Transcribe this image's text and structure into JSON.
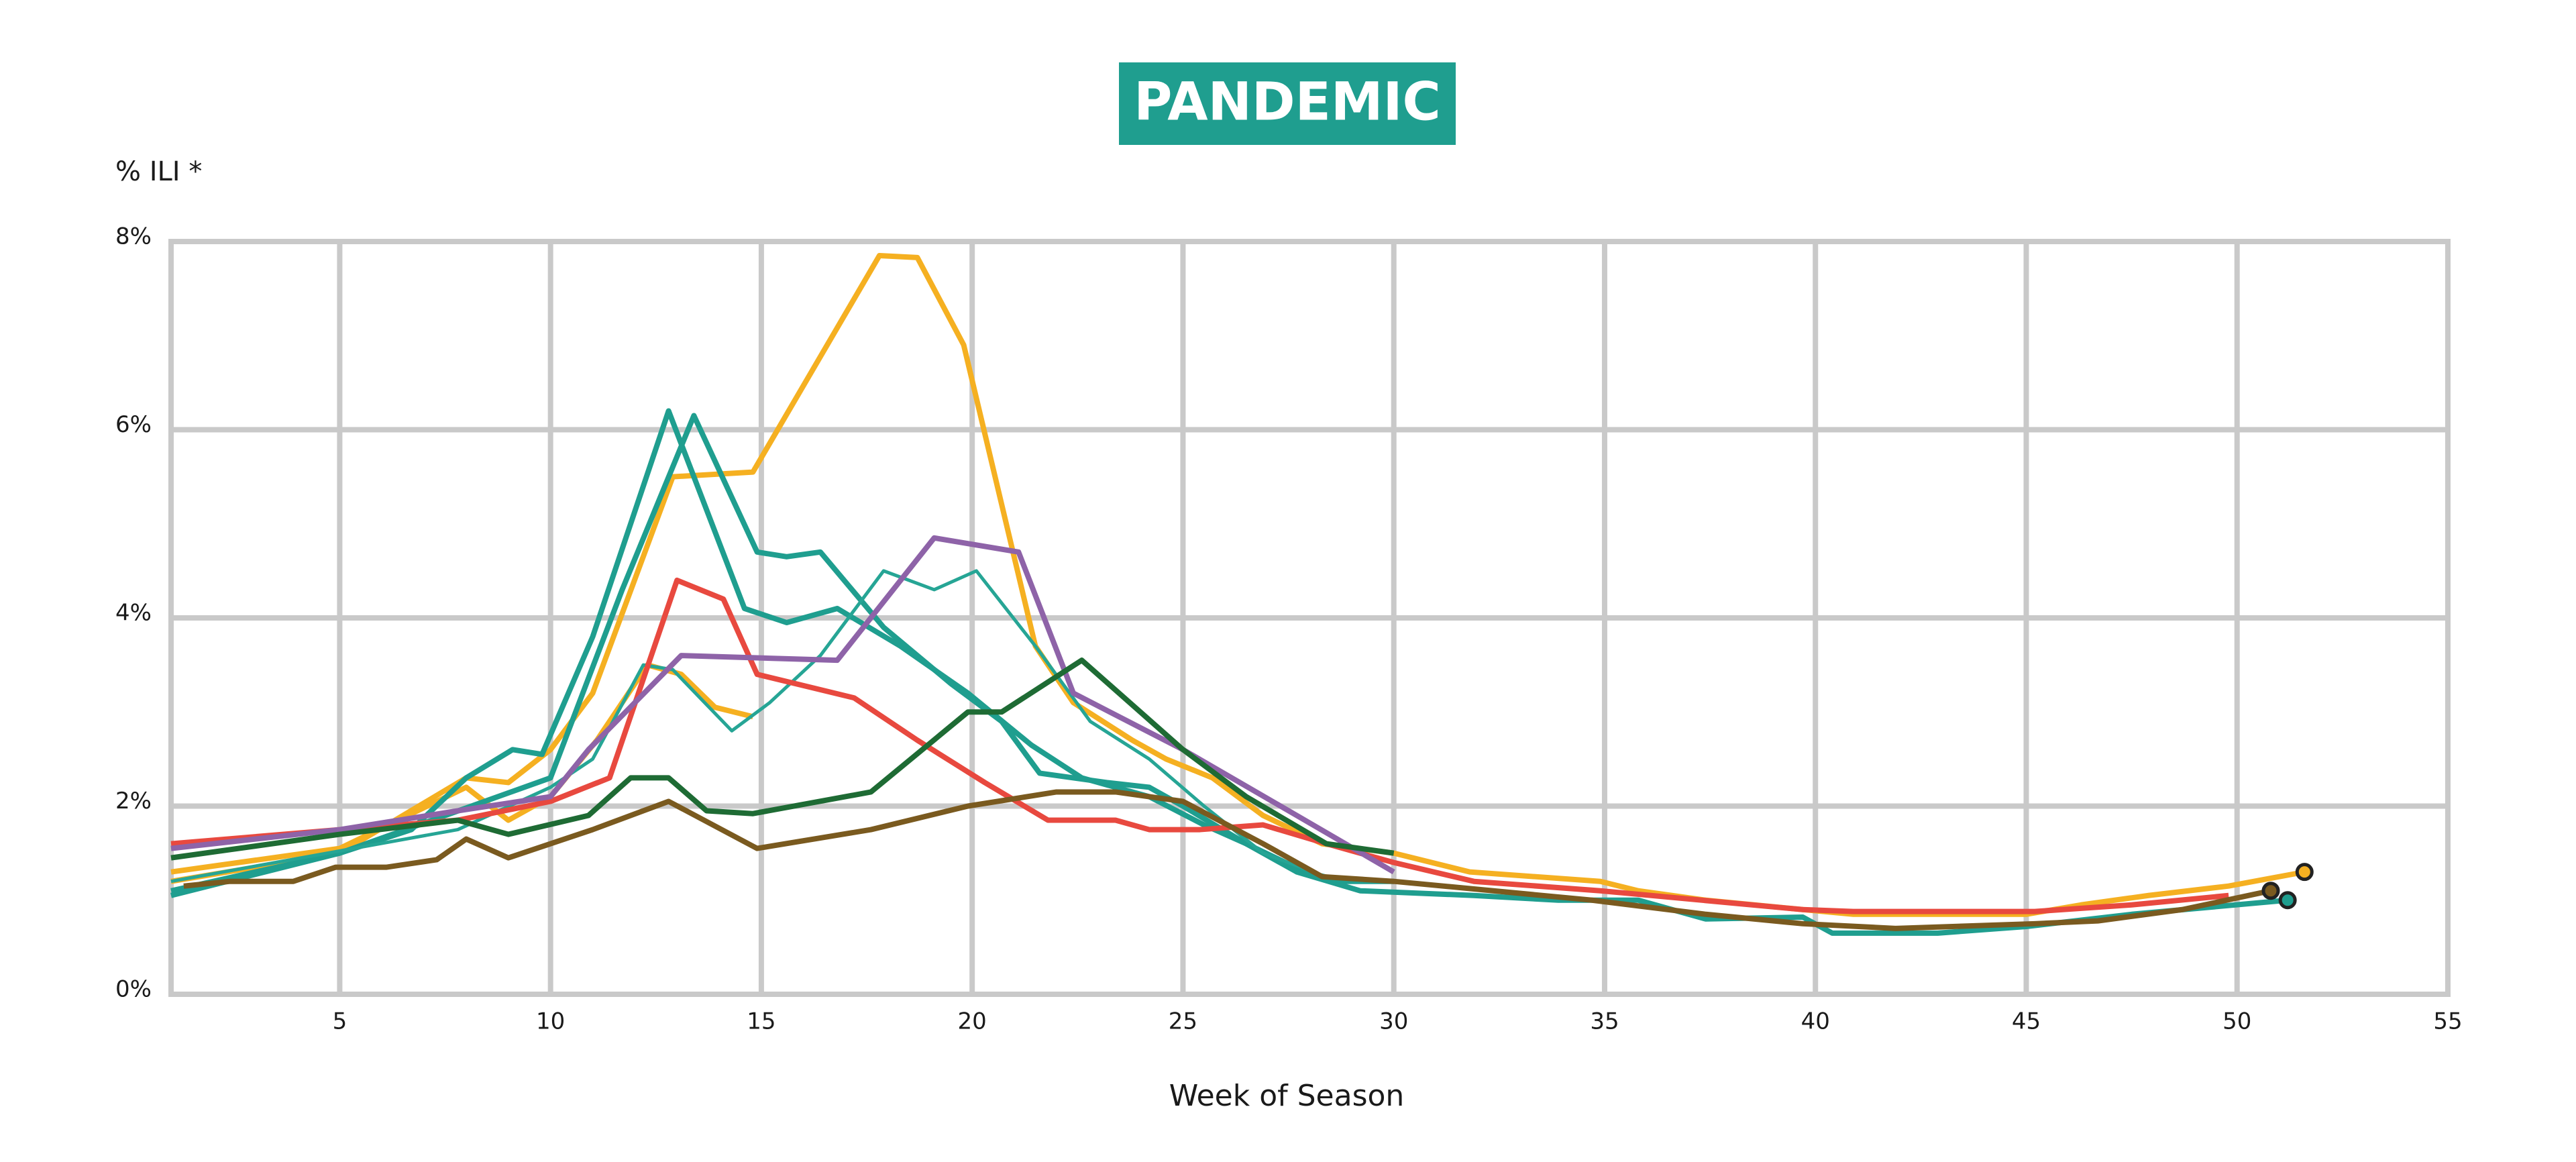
{
  "chart_data": {
    "type": "line",
    "title": "PANDEMIC",
    "y_label": "% ILI *",
    "x_label": "Week of Season",
    "xlim": [
      1,
      55
    ],
    "xticks": [
      5,
      10,
      15,
      20,
      25,
      30,
      35,
      40,
      45,
      50,
      55
    ],
    "ylim": [
      0,
      8
    ],
    "yticks": [
      {
        "value": 0,
        "label": "0%"
      },
      {
        "value": 2,
        "label": "2%"
      },
      {
        "value": 4,
        "label": "4%"
      },
      {
        "value": 6,
        "label": "6%"
      },
      {
        "value": 8,
        "label": "8%"
      }
    ],
    "grid": true,
    "series": [
      {
        "color": "#f5b021",
        "marker_last": true,
        "x": [
          1,
          5,
          8,
          9,
          10,
          11,
          12.9,
          14.8,
          17.8,
          18.7,
          19.8,
          21.5,
          22.4,
          23.8,
          24.6,
          25.7,
          26.9,
          28.3,
          30,
          31.8,
          34.9,
          35.8,
          37.4,
          39.7,
          40.9,
          45,
          46.3,
          47.9,
          49.8,
          51.6
        ],
        "values": [
          1.2,
          1.5,
          2.3,
          2.25,
          2.6,
          3.2,
          5.5,
          5.55,
          7.85,
          7.83,
          6.9,
          3.7,
          3.1,
          2.7,
          2.5,
          2.3,
          1.9,
          1.6,
          1.5,
          1.3,
          1.2,
          1.1,
          1.0,
          0.9,
          0.85,
          0.85,
          0.95,
          1.05,
          1.15,
          1.3
        ]
      },
      {
        "color": "#f5b021",
        "x": [
          1,
          5,
          8,
          9,
          10,
          11.1,
          12.3,
          13.1,
          13.9,
          14.8
        ],
        "values": [
          1.3,
          1.55,
          2.2,
          1.85,
          2.1,
          2.7,
          3.5,
          3.4,
          3.05,
          2.95
        ]
      },
      {
        "color": "#1f9e8f",
        "marker_last": true,
        "x": [
          1,
          5,
          6.7,
          8,
          9.1,
          9.8,
          11,
          12.8,
          14.6,
          15.6,
          16.8,
          18.3,
          19.9,
          21.4,
          22.6,
          24.2,
          25.5,
          26.5,
          27.7,
          29.2,
          31.9,
          33.9,
          35.8,
          37.4,
          39.7,
          40.4,
          42.9,
          45,
          47.5,
          51.2
        ],
        "values": [
          1.1,
          1.5,
          1.75,
          2.3,
          2.6,
          2.55,
          3.8,
          6.2,
          4.1,
          3.95,
          4.1,
          3.7,
          3.2,
          2.65,
          2.3,
          2.1,
          1.8,
          1.6,
          1.3,
          1.1,
          1.05,
          1.0,
          1.0,
          0.8,
          0.82,
          0.65,
          0.65,
          0.72,
          0.85,
          1.0
        ]
      },
      {
        "color": "#1f9e8f",
        "x": [
          1,
          5,
          10,
          11.7,
          13.4,
          14.9,
          15.6,
          16.4,
          17.9,
          19.5,
          20.7,
          21.6,
          23.2,
          24.2,
          25,
          26.5,
          27.9,
          28.8,
          30
        ],
        "values": [
          1.05,
          1.5,
          2.3,
          4.3,
          6.15,
          4.7,
          4.65,
          4.7,
          3.9,
          3.3,
          2.9,
          2.35,
          2.25,
          2.2,
          2.0,
          1.6,
          1.3,
          1.2,
          1.2
        ]
      },
      {
        "color": "#26a595",
        "thin": true,
        "x": [
          1,
          7.8,
          10,
          11,
          12.2,
          12.9,
          14.3,
          15.2,
          16.4,
          17.9,
          19.1,
          20.1,
          21.5,
          22.8,
          24.2,
          25.5,
          26.9,
          28.1
        ],
        "values": [
          1.2,
          1.75,
          2.2,
          2.5,
          3.5,
          3.45,
          2.8,
          3.1,
          3.6,
          4.5,
          4.3,
          4.5,
          3.7,
          2.9,
          2.5,
          2.0,
          1.5,
          1.3
        ]
      },
      {
        "color": "#e8493f",
        "x": [
          1,
          5,
          7.8,
          10,
          11.4,
          13,
          14.1,
          14.9,
          17.2,
          18.7,
          20.3,
          21.8,
          23.4,
          24.2,
          25.4,
          26.9,
          28.4,
          30,
          31.9,
          34.9,
          39.7,
          40.9,
          45.2,
          47.5,
          49.8
        ],
        "values": [
          1.6,
          1.75,
          1.85,
          2.05,
          2.3,
          4.4,
          4.2,
          3.4,
          3.15,
          2.7,
          2.25,
          1.85,
          1.85,
          1.75,
          1.75,
          1.8,
          1.6,
          1.4,
          1.2,
          1.1,
          0.9,
          0.88,
          0.88,
          0.95,
          1.05
        ]
      },
      {
        "color": "#8e63a8",
        "x": [
          1,
          5,
          7.8,
          10,
          10.9,
          13.1,
          16.8,
          19.1,
          21.1,
          22.4,
          25,
          27.7,
          30
        ],
        "values": [
          1.55,
          1.75,
          1.95,
          2.1,
          2.6,
          3.6,
          3.55,
          4.85,
          4.7,
          3.2,
          2.6,
          1.9,
          1.3
        ]
      },
      {
        "color": "#1e6b34",
        "x": [
          1,
          5,
          7.8,
          9,
          10.9,
          11.9,
          12.8,
          13.7,
          14.8,
          17.6,
          19.9,
          20.7,
          22.6,
          25,
          26.5,
          28.4,
          30
        ],
        "values": [
          1.45,
          1.7,
          1.85,
          1.7,
          1.9,
          2.3,
          2.3,
          1.95,
          1.92,
          2.15,
          3.0,
          3.0,
          3.55,
          2.6,
          2.1,
          1.6,
          1.5
        ]
      },
      {
        "color": "#7a5a1f",
        "marker_last": true,
        "x": [
          1.3,
          2.4,
          3.9,
          4.9,
          6.1,
          7.3,
          8,
          9,
          11,
          12.8,
          14.9,
          17.6,
          19.9,
          22,
          23.4,
          25,
          26.9,
          28.3,
          30,
          34.7,
          37.4,
          39.7,
          41.9,
          45.2,
          46.7,
          48.7,
          50.8
        ],
        "values": [
          1.15,
          1.2,
          1.2,
          1.35,
          1.35,
          1.43,
          1.65,
          1.45,
          1.75,
          2.05,
          1.55,
          1.75,
          2.0,
          2.15,
          2.15,
          2.05,
          1.6,
          1.25,
          1.2,
          1.0,
          0.85,
          0.75,
          0.7,
          0.75,
          0.78,
          0.9,
          1.1
        ]
      }
    ]
  }
}
